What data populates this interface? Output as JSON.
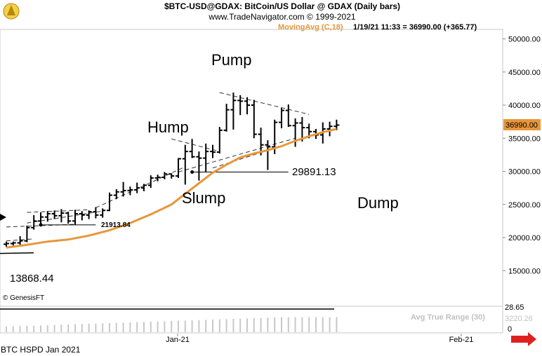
{
  "header": {
    "title": "$BTC-USD@GDAX:  BitCoin/US Dollar @ GDAX  (Daily bars)",
    "subtitle": "www.TradeNavigator.com © 1999-2021"
  },
  "indicator_label": "MovingAvg (C,18)",
  "quote_line": "1/19/21 11:33 = 36990.00 (+365.77)",
  "price_tag": "36990.00",
  "annotations": {
    "pump": "Pump",
    "hump": "Hump",
    "slump": "Slump",
    "dump": "Dump",
    "level_29891": "29891.13",
    "level_21913": "21913.84",
    "level_13868": "13868.44"
  },
  "watermark": "© GenesisFT",
  "footer_label": "BTC HSPD Jan 2021",
  "x_labels": {
    "jan": "Jan-21",
    "feb": "Feb-21"
  },
  "atr": {
    "label": "Avg True Range (30)",
    "upper_value": "28.65",
    "lower_value": "3220.26",
    "zero_label": "0"
  },
  "colors": {
    "moving_average": "#e8963a",
    "price_tag_bg": "#e8963a",
    "bars": "#000000",
    "arrow": "#e02020",
    "indicator_label": "#e8963a"
  },
  "chart_data": {
    "type": "ohlc",
    "y_axis": {
      "ticks": [
        15000,
        20000,
        25000,
        30000,
        35000,
        40000,
        45000,
        50000
      ],
      "tick_labels": [
        "15000.00",
        "20000.00",
        "25000.00",
        "30000.00",
        "35000.00",
        "40000.00",
        "45000.00",
        "50000.00"
      ],
      "ylim": [
        10000,
        52500
      ]
    },
    "bars": [
      {
        "o": 19000,
        "h": 19400,
        "l": 18600,
        "c": 19100
      },
      {
        "o": 19100,
        "h": 19400,
        "l": 18800,
        "c": 19200
      },
      {
        "o": 19200,
        "h": 20200,
        "l": 18900,
        "c": 19500
      },
      {
        "o": 19500,
        "h": 21800,
        "l": 19300,
        "c": 21500
      },
      {
        "o": 21500,
        "h": 23400,
        "l": 21200,
        "c": 22500
      },
      {
        "o": 22500,
        "h": 23800,
        "l": 22100,
        "c": 23100
      },
      {
        "o": 23100,
        "h": 24000,
        "l": 22400,
        "c": 23600
      },
      {
        "o": 23600,
        "h": 24100,
        "l": 22800,
        "c": 23300
      },
      {
        "o": 23300,
        "h": 24300,
        "l": 22300,
        "c": 23700
      },
      {
        "o": 23700,
        "h": 23900,
        "l": 22100,
        "c": 22500
      },
      {
        "o": 22500,
        "h": 24200,
        "l": 21900,
        "c": 23600
      },
      {
        "o": 23600,
        "h": 24000,
        "l": 22600,
        "c": 23400
      },
      {
        "o": 23400,
        "h": 24100,
        "l": 22800,
        "c": 23900
      },
      {
        "o": 23900,
        "h": 24600,
        "l": 22900,
        "c": 23400
      },
      {
        "o": 23400,
        "h": 24400,
        "l": 23000,
        "c": 24100
      },
      {
        "o": 24100,
        "h": 26800,
        "l": 24000,
        "c": 26400
      },
      {
        "o": 26400,
        "h": 27300,
        "l": 25800,
        "c": 26900
      },
      {
        "o": 26900,
        "h": 28400,
        "l": 26200,
        "c": 27100
      },
      {
        "o": 27100,
        "h": 27700,
        "l": 26400,
        "c": 27200
      },
      {
        "o": 27200,
        "h": 28300,
        "l": 26700,
        "c": 27500
      },
      {
        "o": 27500,
        "h": 28100,
        "l": 27000,
        "c": 27900
      },
      {
        "o": 27900,
        "h": 29400,
        "l": 27500,
        "c": 29000
      },
      {
        "o": 29000,
        "h": 29500,
        "l": 28500,
        "c": 29100
      },
      {
        "o": 29100,
        "h": 29900,
        "l": 28800,
        "c": 29600
      },
      {
        "o": 29600,
        "h": 29700,
        "l": 28900,
        "c": 29300
      },
      {
        "o": 29300,
        "h": 32000,
        "l": 29000,
        "c": 31900
      },
      {
        "o": 31900,
        "h": 34000,
        "l": 28000,
        "c": 33000
      },
      {
        "o": 33000,
        "h": 34900,
        "l": 32000,
        "c": 32200
      },
      {
        "o": 32200,
        "h": 33000,
        "l": 28600,
        "c": 32000
      },
      {
        "o": 32000,
        "h": 34200,
        "l": 29900,
        "c": 33000
      },
      {
        "o": 33000,
        "h": 34000,
        "l": 32000,
        "c": 32900
      },
      {
        "o": 32900,
        "h": 36700,
        "l": 32700,
        "c": 36200
      },
      {
        "o": 36200,
        "h": 40200,
        "l": 36000,
        "c": 39300
      },
      {
        "o": 39300,
        "h": 41900,
        "l": 36300,
        "c": 40700
      },
      {
        "o": 40700,
        "h": 41500,
        "l": 38500,
        "c": 40600
      },
      {
        "o": 40600,
        "h": 41200,
        "l": 38600,
        "c": 40000
      },
      {
        "o": 40000,
        "h": 40800,
        "l": 35000,
        "c": 35600
      },
      {
        "o": 35600,
        "h": 36600,
        "l": 32400,
        "c": 34000
      },
      {
        "o": 34000,
        "h": 34700,
        "l": 30200,
        "c": 33700
      },
      {
        "o": 33700,
        "h": 37800,
        "l": 32600,
        "c": 37400
      },
      {
        "o": 37400,
        "h": 39600,
        "l": 36500,
        "c": 39200
      },
      {
        "o": 39200,
        "h": 40100,
        "l": 36700,
        "c": 36900
      },
      {
        "o": 36900,
        "h": 38000,
        "l": 33700,
        "c": 37300
      },
      {
        "o": 37300,
        "h": 38200,
        "l": 34500,
        "c": 36600
      },
      {
        "o": 36600,
        "h": 37200,
        "l": 35000,
        "c": 36000
      },
      {
        "o": 36000,
        "h": 36400,
        "l": 34900,
        "c": 35500
      },
      {
        "o": 35500,
        "h": 37400,
        "l": 34200,
        "c": 36400
      },
      {
        "o": 36400,
        "h": 37500,
        "l": 35300,
        "c": 36800
      },
      {
        "o": 36800,
        "h": 37800,
        "l": 36200,
        "c": 36990
      }
    ],
    "moving_average": [
      {
        "i": 0,
        "v": 18500
      },
      {
        "i": 3,
        "v": 18900
      },
      {
        "i": 6,
        "v": 19400
      },
      {
        "i": 9,
        "v": 19700
      },
      {
        "i": 12,
        "v": 20300
      },
      {
        "i": 15,
        "v": 21100
      },
      {
        "i": 18,
        "v": 22200
      },
      {
        "i": 21,
        "v": 23500
      },
      {
        "i": 24,
        "v": 25000
      },
      {
        "i": 26,
        "v": 26600
      },
      {
        "i": 28,
        "v": 28200
      },
      {
        "i": 30,
        "v": 29800
      },
      {
        "i": 32,
        "v": 31000
      },
      {
        "i": 34,
        "v": 32100
      },
      {
        "i": 36,
        "v": 32700
      },
      {
        "i": 38,
        "v": 33200
      },
      {
        "i": 40,
        "v": 33800
      },
      {
        "i": 42,
        "v": 34600
      },
      {
        "i": 44,
        "v": 35300
      },
      {
        "i": 46,
        "v": 35900
      },
      {
        "i": 48,
        "v": 36400
      }
    ],
    "trendlines": [
      {
        "from": {
          "i": 0,
          "v": 21600
        },
        "to": {
          "i": 10,
          "v": 22000
        }
      },
      {
        "from": {
          "i": 0,
          "v": 19500
        },
        "to": {
          "i": 4,
          "v": 19800
        }
      },
      {
        "from": {
          "i": 3,
          "v": 23800
        },
        "to": {
          "i": 12,
          "v": 24200
        }
      },
      {
        "from": {
          "i": 3,
          "v": 22200
        },
        "to": {
          "i": 14,
          "v": 24000
        }
      },
      {
        "from": {
          "i": 13,
          "v": 24500
        },
        "to": {
          "i": 26,
          "v": 30700
        }
      },
      {
        "from": {
          "i": 24,
          "v": 34900
        },
        "to": {
          "i": 31,
          "v": 33000
        }
      },
      {
        "from": {
          "i": 25,
          "v": 29900
        },
        "to": {
          "i": 42,
          "v": 35000
        }
      },
      {
        "from": {
          "i": 31,
          "v": 41900
        },
        "to": {
          "i": 44,
          "v": 38600
        }
      },
      {
        "from": {
          "i": 30,
          "v": 30500
        },
        "to": {
          "i": 48,
          "v": 36500
        }
      }
    ],
    "horizontal_levels": [
      {
        "value": 29891.13,
        "from_i": 27,
        "to_i": 41
      },
      {
        "value": 21913.84,
        "from_i": 5,
        "to_i": 13
      }
    ],
    "atr_series": [
      1200,
      1250,
      1300,
      1350,
      1400,
      1450,
      1500,
      1550,
      1600,
      1650,
      1700,
      1750,
      1800,
      1850,
      1900,
      1950,
      2000,
      2050,
      2100,
      2150,
      2200,
      2250,
      2300,
      2350,
      2400,
      2450,
      2500,
      2550,
      2600,
      2650,
      2700,
      2750,
      2800,
      2850,
      2900,
      2950,
      3000,
      3050,
      3100,
      3150,
      3200,
      3200,
      3220,
      3220,
      3220,
      3220,
      3220,
      3220,
      3220
    ]
  }
}
